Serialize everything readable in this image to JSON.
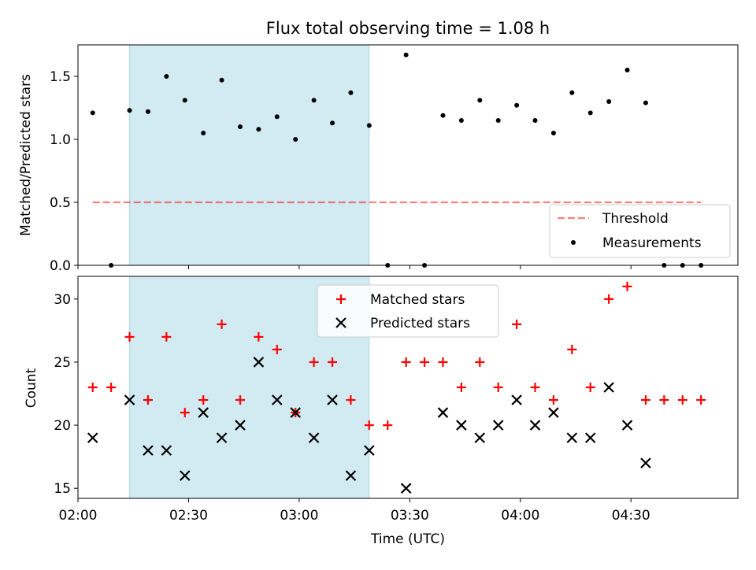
{
  "title": "Flux total observing time = 1.08 h",
  "colors": {
    "shade": "#add8e6",
    "threshold": "#ff0000",
    "measurement": "#000000",
    "matched": "#ff0000",
    "predicted": "#000000"
  },
  "chart_data": [
    {
      "type": "scatter",
      "name": "ratio",
      "ylabel": "Matched/Predicted stars",
      "ylim": [
        0,
        1.75
      ],
      "yticks": [
        "0.0",
        "0.5",
        "1.0",
        "1.5"
      ],
      "ytick_values": [
        0,
        0.5,
        1.0,
        1.5
      ],
      "shaded_span": [
        "02:14",
        "03:19"
      ],
      "threshold": {
        "name": "Threshold",
        "value": 0.5,
        "x_start": "02:04",
        "x_end": "04:49"
      },
      "legend": {
        "position": "lower-right",
        "entries": [
          "Threshold",
          "Measurements"
        ]
      },
      "series": [
        {
          "name": "Measurements",
          "x": [
            "02:04",
            "02:09",
            "02:14",
            "02:19",
            "02:24",
            "02:29",
            "02:34",
            "02:39",
            "02:44",
            "02:49",
            "02:54",
            "02:59",
            "03:04",
            "03:09",
            "03:14",
            "03:19",
            "03:24",
            "03:29",
            "03:34",
            "03:39",
            "03:44",
            "03:49",
            "03:54",
            "03:59",
            "04:04",
            "04:09",
            "04:14",
            "04:19",
            "04:24",
            "04:29",
            "04:34",
            "04:39",
            "04:44",
            "04:49"
          ],
          "y": [
            1.21,
            0.0,
            1.23,
            1.22,
            1.5,
            1.31,
            1.05,
            1.47,
            1.1,
            1.08,
            1.18,
            1.0,
            1.31,
            1.13,
            1.37,
            1.11,
            0.0,
            1.67,
            0.0,
            1.19,
            1.15,
            1.31,
            1.15,
            1.27,
            1.15,
            1.05,
            1.37,
            1.21,
            1.3,
            1.55,
            1.29,
            0.0,
            0.0,
            0.0
          ]
        }
      ]
    },
    {
      "type": "scatter",
      "name": "counts",
      "xlabel": "Time (UTC)",
      "ylabel": "Count",
      "ylim": [
        14.2,
        31.8
      ],
      "yticks": [
        "15",
        "20",
        "25",
        "30"
      ],
      "ytick_values": [
        15,
        20,
        25,
        30
      ],
      "xlim": [
        "02:00",
        "04:59"
      ],
      "xticks": [
        "02:00",
        "02:30",
        "03:00",
        "03:30",
        "04:00",
        "04:30"
      ],
      "shaded_span": [
        "02:14",
        "03:19"
      ],
      "legend": {
        "position": "upper-center",
        "entries": [
          "Matched stars",
          "Predicted stars"
        ]
      },
      "series": [
        {
          "name": "Matched stars",
          "marker": "+",
          "x": [
            "02:04",
            "02:09",
            "02:14",
            "02:19",
            "02:24",
            "02:29",
            "02:34",
            "02:39",
            "02:44",
            "02:49",
            "02:54",
            "02:59",
            "03:04",
            "03:09",
            "03:14",
            "03:19",
            "03:24",
            "03:29",
            "03:34",
            "03:39",
            "03:44",
            "03:49",
            "03:54",
            "03:59",
            "04:04",
            "04:09",
            "04:14",
            "04:19",
            "04:24",
            "04:29",
            "04:34",
            "04:39",
            "04:44",
            "04:49"
          ],
          "y": [
            23,
            23,
            27,
            22,
            27,
            21,
            22,
            28,
            22,
            27,
            26,
            21,
            25,
            25,
            22,
            20,
            20,
            25,
            25,
            25,
            23,
            25,
            23,
            28,
            23,
            22,
            26,
            23,
            30,
            31,
            22,
            22,
            22,
            22
          ]
        },
        {
          "name": "Predicted stars",
          "marker": "x",
          "x": [
            "02:04",
            "02:14",
            "02:19",
            "02:24",
            "02:29",
            "02:34",
            "02:39",
            "02:44",
            "02:49",
            "02:54",
            "02:59",
            "03:04",
            "03:09",
            "03:14",
            "03:19",
            "03:29",
            "03:39",
            "03:44",
            "03:49",
            "03:54",
            "03:59",
            "04:04",
            "04:09",
            "04:14",
            "04:19",
            "04:24",
            "04:29",
            "04:34"
          ],
          "y": [
            19,
            22,
            18,
            18,
            16,
            21,
            19,
            20,
            25,
            22,
            21,
            19,
            22,
            16,
            18,
            15,
            21,
            20,
            19,
            20,
            22,
            20,
            21,
            19,
            19,
            23,
            20,
            17
          ]
        }
      ]
    }
  ]
}
